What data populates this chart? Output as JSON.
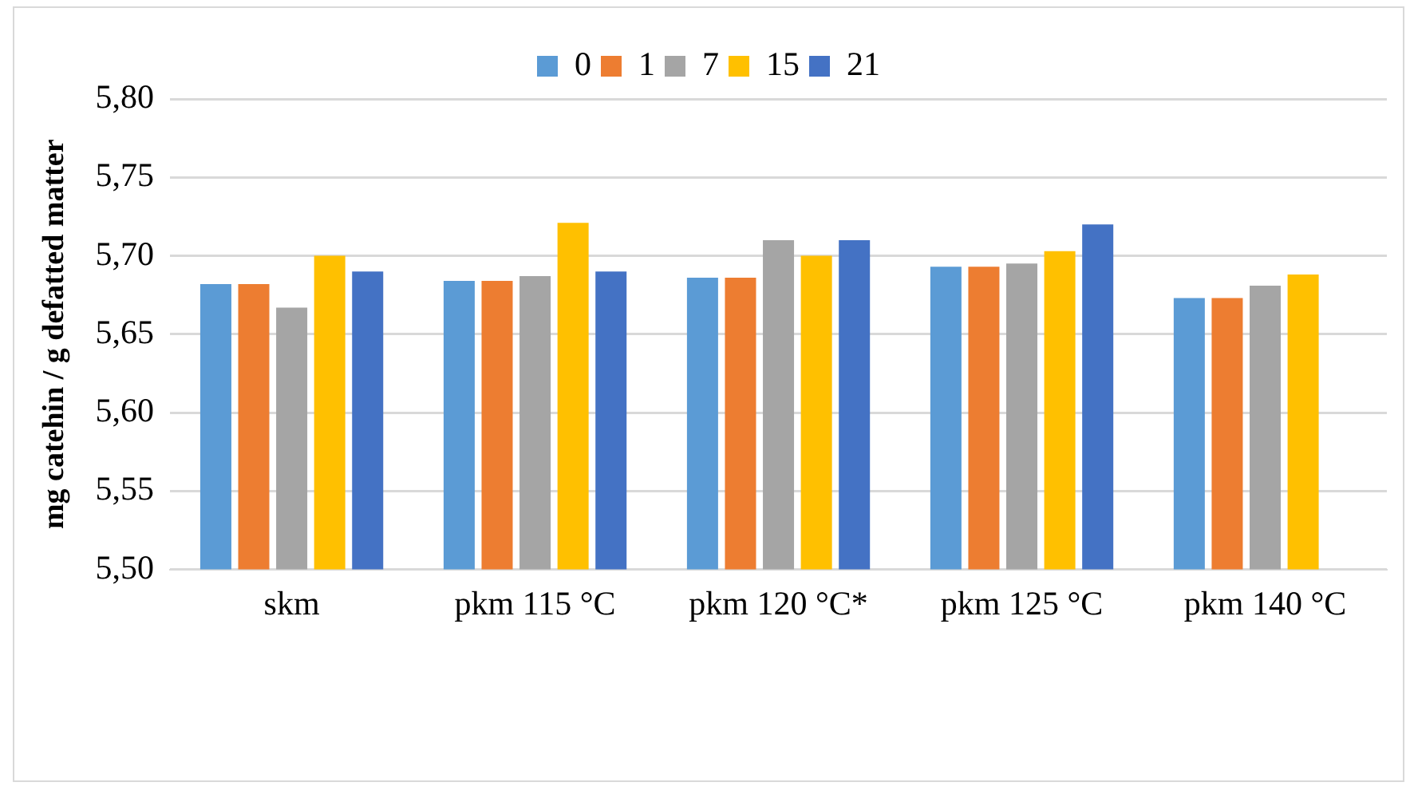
{
  "chart_data": {
    "type": "bar",
    "ylabel": "mg catehin / g defatted matter",
    "categories": [
      "skm",
      "pkm 115 °C",
      "pkm 120 °C*",
      "pkm 125 °C",
      "pkm 140 °C"
    ],
    "series": [
      {
        "name": "0",
        "color": "#5b9bd5",
        "values": [
          5.682,
          5.684,
          5.686,
          5.693,
          5.673
        ]
      },
      {
        "name": "1",
        "color": "#ed7d31",
        "values": [
          5.682,
          5.684,
          5.686,
          5.693,
          5.673
        ]
      },
      {
        "name": "7",
        "color": "#a5a5a5",
        "values": [
          5.667,
          5.687,
          5.71,
          5.695,
          5.681
        ]
      },
      {
        "name": "15",
        "color": "#ffc000",
        "values": [
          5.7,
          5.721,
          5.7,
          5.703,
          5.688
        ]
      },
      {
        "name": "21",
        "color": "#4472c4",
        "values": [
          5.69,
          5.69,
          5.71,
          5.72,
          null
        ]
      }
    ],
    "ylim": [
      5.5,
      5.8
    ],
    "yticks": [
      {
        "value": 5.5,
        "label": "5,50"
      },
      {
        "value": 5.55,
        "label": "5,55"
      },
      {
        "value": 5.6,
        "label": "5,60"
      },
      {
        "value": 5.65,
        "label": "5,65"
      },
      {
        "value": 5.7,
        "label": "5,70"
      },
      {
        "value": 5.75,
        "label": "5,75"
      },
      {
        "value": 5.8,
        "label": "5,80"
      }
    ],
    "grid": "y",
    "legend": "top"
  }
}
